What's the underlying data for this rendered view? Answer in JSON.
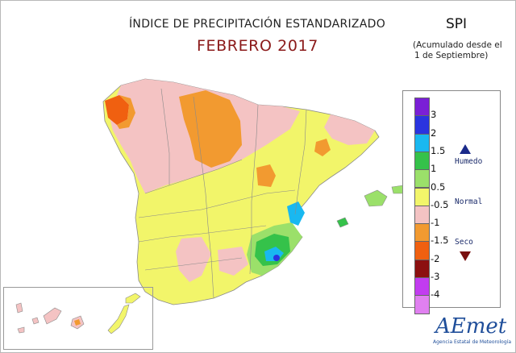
{
  "header": {
    "title": "ÍNDICE DE PRECIPITACIÓN ESTANDARIZADO",
    "subtitle": "FEBRERO 2017",
    "index_name": "SPI",
    "note_line1": "(Acumulado desde el",
    "note_line2": "1 de Septiembre)"
  },
  "legend": {
    "ticks": [
      "3",
      "2",
      "1.5",
      "1",
      "0.5",
      "-0.5",
      "-1",
      "-1.5",
      "-2",
      "-3",
      "-4"
    ],
    "colors": [
      "#7a1fd6",
      "#2a34e0",
      "#19b8f0",
      "#35c24a",
      "#9be06a",
      "#f2f56a",
      "#f4c3c3",
      "#f29a30",
      "#f06010",
      "#8c1010",
      "#c23cf0",
      "#e080f0"
    ],
    "humid_label": "Humedo",
    "normal_label": "Normal",
    "dry_label": "Seco",
    "humid_color": "#1a2a8a",
    "dry_color": "#7a1010"
  },
  "logo": {
    "name": "AEmet",
    "tagline": "Agencia Estatal de Meteorología"
  },
  "map_colors": {
    "yellow": "#f2f56a",
    "pink": "#f4c3c3",
    "orange": "#f29a30",
    "dark_orange": "#f06010",
    "light_green": "#9be06a",
    "green": "#35c24a",
    "cyan": "#19b8f0",
    "blue": "#2a34e0",
    "border": "#8a8a8a"
  }
}
